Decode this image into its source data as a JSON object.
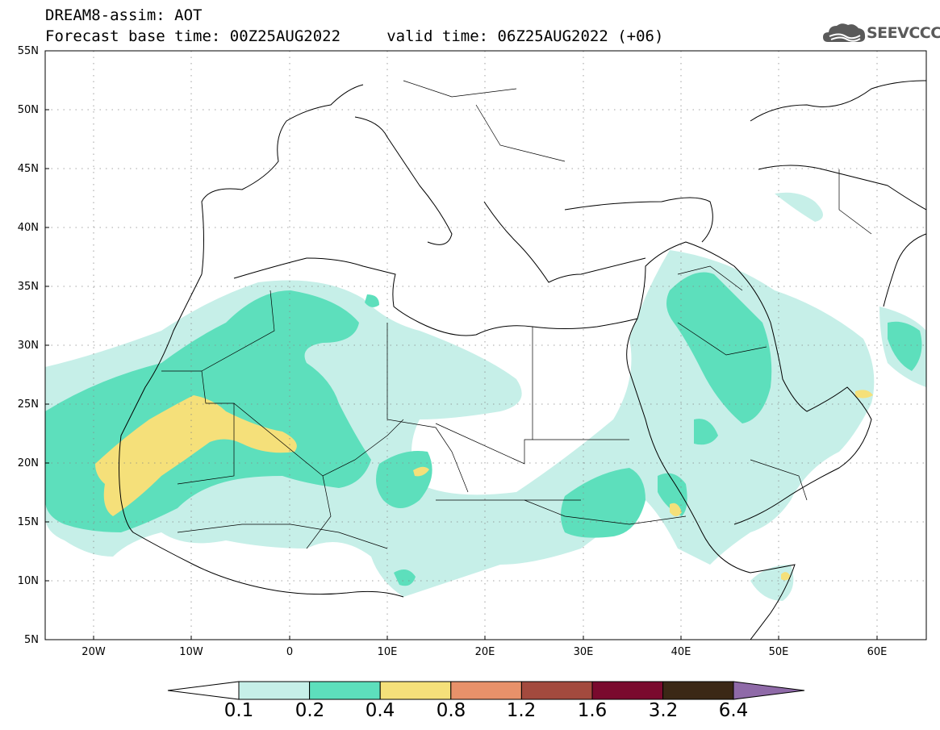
{
  "header": {
    "title_line1": "DREAM8-assim: AOT",
    "title_line2": "Forecast base time: 00Z25AUG2022     valid time: 06Z25AUG2022 (+06)"
  },
  "logo": {
    "text": "SEEVCCC",
    "icon": "cloud-icon"
  },
  "map": {
    "extent": {
      "lon_min": -25,
      "lon_max": 65,
      "lat_min": 5,
      "lat_max": 55
    },
    "lat_labels": [
      "55N",
      "50N",
      "45N",
      "40N",
      "35N",
      "30N",
      "25N",
      "20N",
      "15N",
      "10N",
      "5N"
    ],
    "lon_labels": [
      "20W",
      "10W",
      "0",
      "10E",
      "20E",
      "30E",
      "40E",
      "50E",
      "60E"
    ],
    "grid": "dotted",
    "field": "AOT"
  },
  "colorbar": {
    "levels": [
      "0.1",
      "0.2",
      "0.4",
      "0.8",
      "1.2",
      "1.6",
      "3.2",
      "6.4"
    ],
    "colors": [
      "#ffffff",
      "#c6efe8",
      "#5ddfbc",
      "#f5e07a",
      "#e8916a",
      "#a34a3e",
      "#7a0a2e",
      "#3b2816",
      "#8f6aa8"
    ],
    "extend": "both"
  }
}
